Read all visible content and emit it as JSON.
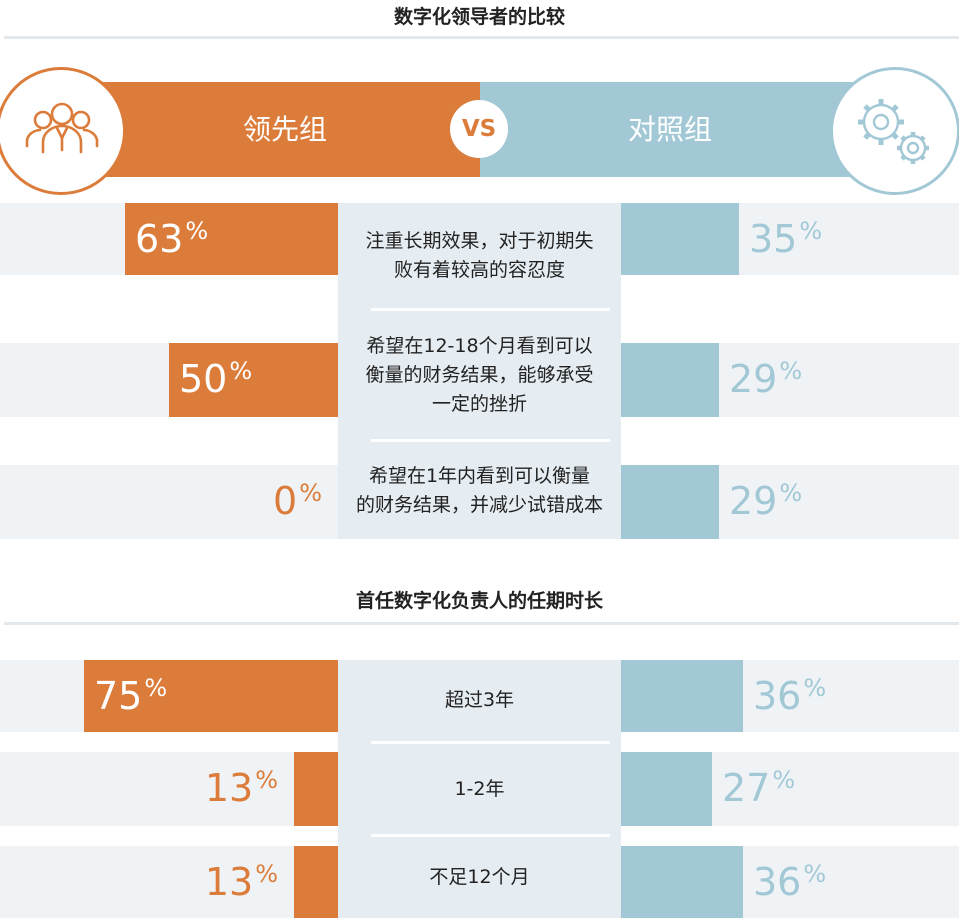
{
  "header": {
    "title": "数字化领导者的比较",
    "leader_label": "领先组",
    "control_label": "对照组",
    "vs_label": "VS",
    "leader_icon": "people-group-icon",
    "control_icon": "gears-icon"
  },
  "colors": {
    "leader": "#dc7c3a",
    "control": "#a2c8d6"
  },
  "chart_data": [
    {
      "type": "bar",
      "title": "数字化领导者的比较",
      "categories": [
        "注重长期效果，对于初期失败有着较高的容忍度",
        "希望在12-18个月看到可以衡量的财务结果，能够承受一定的挫折",
        "希望在1年内看到可以衡量的财务结果，并减少试错成本"
      ],
      "category_lines": [
        [
          "注重长期效果，对于初期失",
          "败有着较高的容忍度"
        ],
        [
          "希望在12-18个月看到可以",
          "衡量的财务结果，能够承受",
          "一定的挫折"
        ],
        [
          "希望在1年内看到可以衡量",
          "的财务结果，并减少试错成本"
        ]
      ],
      "series": [
        {
          "name": "领先组",
          "values": [
            63,
            50,
            0
          ],
          "labels": [
            "63",
            "50",
            "0"
          ]
        },
        {
          "name": "对照组",
          "values": [
            35,
            29,
            29
          ],
          "labels": [
            "35",
            "29",
            "29"
          ]
        }
      ],
      "unit": "%"
    },
    {
      "type": "bar",
      "title": "首任数字化负责人的任期时长",
      "categories": [
        "超过3年",
        "1-2年",
        "不足12个月"
      ],
      "category_lines": [
        [
          "超过3年"
        ],
        [
          "1-2年"
        ],
        [
          "不足12个月"
        ]
      ],
      "series": [
        {
          "name": "领先组",
          "values": [
            75,
            13,
            13
          ],
          "labels": [
            "75",
            "13",
            "13"
          ]
        },
        {
          "name": "对照组",
          "values": [
            36,
            27,
            36
          ],
          "labels": [
            "36",
            "27",
            "36"
          ]
        }
      ],
      "unit": "%"
    }
  ]
}
